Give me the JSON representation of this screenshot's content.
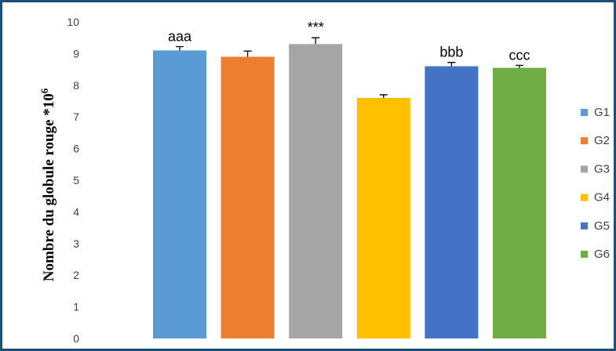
{
  "chart_data": {
    "type": "bar",
    "ylabel": "Nombre du globule rouge *10^6",
    "ylim": [
      0,
      10
    ],
    "yticks": [
      "0",
      "1",
      "2",
      "3",
      "4",
      "5",
      "6",
      "7",
      "8",
      "9",
      "10"
    ],
    "grid": false,
    "legend_position": "right",
    "series": [
      {
        "name": "G1",
        "value": 9.1,
        "error": 0.12,
        "color": "#5b9bd5",
        "annotation": "aaa"
      },
      {
        "name": "G2",
        "value": 8.9,
        "error": 0.18,
        "color": "#ed7d31",
        "annotation": ""
      },
      {
        "name": "G3",
        "value": 9.3,
        "error": 0.2,
        "color": "#a5a5a5",
        "annotation": "***"
      },
      {
        "name": "G4",
        "value": 7.6,
        "error": 0.1,
        "color": "#ffc000",
        "annotation": ""
      },
      {
        "name": "G5",
        "value": 8.6,
        "error": 0.12,
        "color": "#4472c4",
        "annotation": "bbb"
      },
      {
        "name": "G6",
        "value": 8.55,
        "error": 0.08,
        "color": "#70ad47",
        "annotation": "ccc"
      }
    ]
  }
}
